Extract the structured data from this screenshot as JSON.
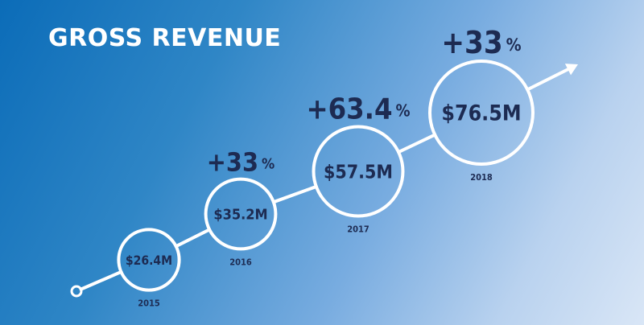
{
  "chart_data": {
    "type": "scatter",
    "title": "GROSS REVENUE",
    "unit": "M",
    "points": [
      {
        "year": "2015",
        "label": "$26.4M",
        "value": 26.4,
        "growth": null
      },
      {
        "year": "2016",
        "label": "$35.2M",
        "value": 35.2,
        "growth": "+33",
        "growth_unit": "%"
      },
      {
        "year": "2017",
        "label": "$57.5M",
        "value": 57.5,
        "growth": "+63.4",
        "growth_unit": "%"
      },
      {
        "year": "2018",
        "label": "$76.5M",
        "value": 76.5,
        "growth": "+33",
        "growth_unit": "%"
      }
    ]
  },
  "colors": {
    "text_dark": "#1d2b52",
    "line": "#ffffff"
  }
}
